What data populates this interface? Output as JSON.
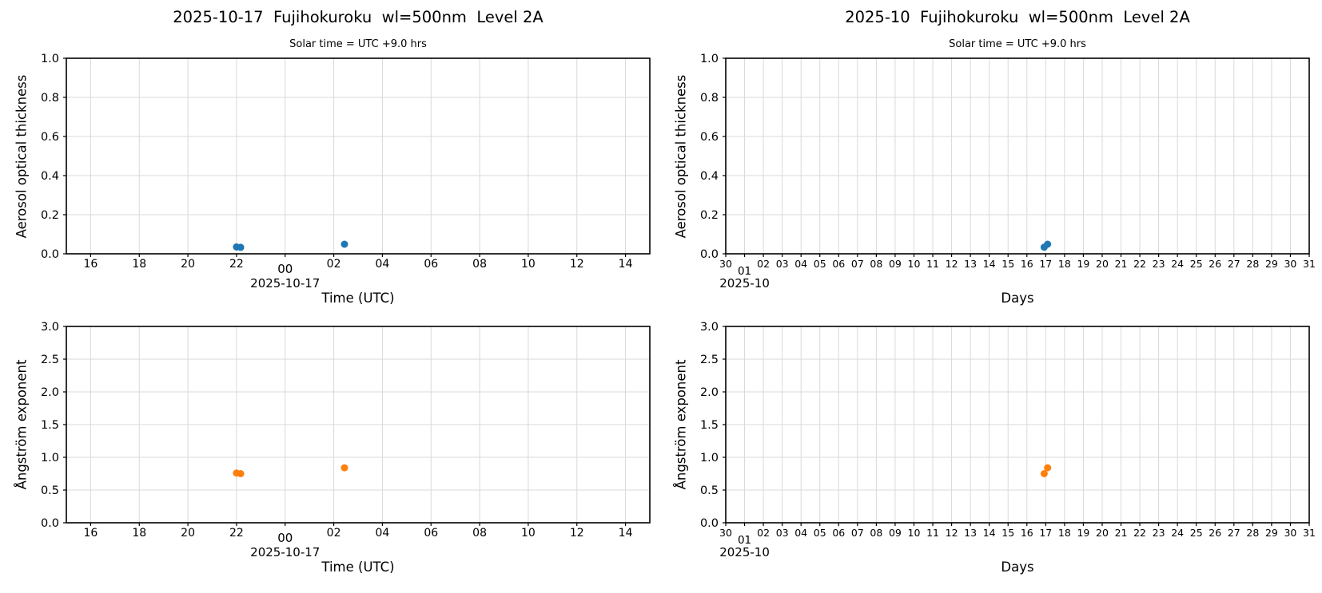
{
  "figure": {
    "background": "#ffffff",
    "layout": "2x2 scatter plots: daily (left) vs monthly (right); AOT (top) vs Angstrom exponent (bottom)"
  },
  "colors": {
    "marker_blue": "#1f77b4",
    "marker_orange": "#ff7f0e",
    "grid": "#d9d9d9",
    "spine": "#000000",
    "text": "#000000"
  },
  "chart_data": [
    {
      "id": "aot-daily",
      "type": "scatter",
      "title": "2025-10-17  Fujihokuroku  wl=500nm  Level 2A",
      "subtitle": "Solar time = UTC +9.0 hrs",
      "xlabel": "Time (UTC)",
      "ylabel": "Aerosol optical thickness",
      "grid": true,
      "legend": "none",
      "marker_color": "#1f77b4",
      "xlim": [
        15,
        39
      ],
      "ylim": [
        0,
        1
      ],
      "yticks": [
        {
          "pos": 0.0,
          "label": "0.0"
        },
        {
          "pos": 0.2,
          "label": "0.2"
        },
        {
          "pos": 0.4,
          "label": "0.4"
        },
        {
          "pos": 0.6,
          "label": "0.6"
        },
        {
          "pos": 0.8,
          "label": "0.8"
        },
        {
          "pos": 1.0,
          "label": "1.0"
        }
      ],
      "xticks": [
        {
          "pos": 16,
          "label": "16"
        },
        {
          "pos": 18,
          "label": "18"
        },
        {
          "pos": 20,
          "label": "20"
        },
        {
          "pos": 22,
          "label": "22"
        },
        {
          "pos": 24,
          "label": "00",
          "special": true
        },
        {
          "pos": 26,
          "label": "02"
        },
        {
          "pos": 28,
          "label": "04"
        },
        {
          "pos": 30,
          "label": "06"
        },
        {
          "pos": 32,
          "label": "08"
        },
        {
          "pos": 34,
          "label": "10"
        },
        {
          "pos": 36,
          "label": "12"
        },
        {
          "pos": 38,
          "label": "14"
        }
      ],
      "x_offset": {
        "label": "2025-10-17",
        "pos": 24
      },
      "points": [
        {
          "x": 22.0,
          "y": 0.035
        },
        {
          "x": 22.17,
          "y": 0.033
        },
        {
          "x": 26.44,
          "y": 0.049
        }
      ]
    },
    {
      "id": "aot-monthly",
      "type": "scatter",
      "title": "2025-10  Fujihokuroku  wl=500nm  Level 2A",
      "subtitle": "Solar time = UTC +9.0 hrs",
      "xlabel": "Days",
      "ylabel": "Aerosol optical thickness",
      "grid": true,
      "legend": "none",
      "marker_color": "#1f77b4",
      "xlim": [
        0,
        31
      ],
      "ylim": [
        0,
        1
      ],
      "yticks": [
        {
          "pos": 0.0,
          "label": "0.0"
        },
        {
          "pos": 0.2,
          "label": "0.2"
        },
        {
          "pos": 0.4,
          "label": "0.4"
        },
        {
          "pos": 0.6,
          "label": "0.6"
        },
        {
          "pos": 0.8,
          "label": "0.8"
        },
        {
          "pos": 1.0,
          "label": "1.0"
        }
      ],
      "xticks": [
        {
          "pos": 0,
          "label": "30"
        },
        {
          "pos": 1,
          "label": "01",
          "special": true
        },
        {
          "pos": 2,
          "label": "02"
        },
        {
          "pos": 3,
          "label": "03"
        },
        {
          "pos": 4,
          "label": "04"
        },
        {
          "pos": 5,
          "label": "05"
        },
        {
          "pos": 6,
          "label": "06"
        },
        {
          "pos": 7,
          "label": "07"
        },
        {
          "pos": 8,
          "label": "08"
        },
        {
          "pos": 9,
          "label": "09"
        },
        {
          "pos": 10,
          "label": "10"
        },
        {
          "pos": 11,
          "label": "11"
        },
        {
          "pos": 12,
          "label": "12"
        },
        {
          "pos": 13,
          "label": "13"
        },
        {
          "pos": 14,
          "label": "14"
        },
        {
          "pos": 15,
          "label": "15"
        },
        {
          "pos": 16,
          "label": "16"
        },
        {
          "pos": 17,
          "label": "17"
        },
        {
          "pos": 18,
          "label": "18"
        },
        {
          "pos": 19,
          "label": "19"
        },
        {
          "pos": 20,
          "label": "20"
        },
        {
          "pos": 21,
          "label": "21"
        },
        {
          "pos": 22,
          "label": "22"
        },
        {
          "pos": 23,
          "label": "23"
        },
        {
          "pos": 24,
          "label": "24"
        },
        {
          "pos": 25,
          "label": "25"
        },
        {
          "pos": 26,
          "label": "26"
        },
        {
          "pos": 27,
          "label": "27"
        },
        {
          "pos": 28,
          "label": "28"
        },
        {
          "pos": 29,
          "label": "29"
        },
        {
          "pos": 30,
          "label": "30"
        },
        {
          "pos": 31,
          "label": "31"
        }
      ],
      "x_offset": {
        "label": "2025-10",
        "pos": 1
      },
      "points": [
        {
          "x": 16.92,
          "y": 0.034
        },
        {
          "x": 17.1,
          "y": 0.049
        }
      ]
    },
    {
      "id": "angstrom-daily",
      "type": "scatter",
      "title": "",
      "subtitle": "",
      "xlabel": "Time (UTC)",
      "ylabel": "Ångström exponent",
      "grid": true,
      "legend": "none",
      "marker_color": "#ff7f0e",
      "xlim": [
        15,
        39
      ],
      "ylim": [
        0,
        3
      ],
      "yticks": [
        {
          "pos": 0.0,
          "label": "0.0"
        },
        {
          "pos": 0.5,
          "label": "0.5"
        },
        {
          "pos": 1.0,
          "label": "1.0"
        },
        {
          "pos": 1.5,
          "label": "1.5"
        },
        {
          "pos": 2.0,
          "label": "2.0"
        },
        {
          "pos": 2.5,
          "label": "2.5"
        },
        {
          "pos": 3.0,
          "label": "3.0"
        }
      ],
      "xticks": [
        {
          "pos": 16,
          "label": "16"
        },
        {
          "pos": 18,
          "label": "18"
        },
        {
          "pos": 20,
          "label": "20"
        },
        {
          "pos": 22,
          "label": "22"
        },
        {
          "pos": 24,
          "label": "00",
          "special": true
        },
        {
          "pos": 26,
          "label": "02"
        },
        {
          "pos": 28,
          "label": "04"
        },
        {
          "pos": 30,
          "label": "06"
        },
        {
          "pos": 32,
          "label": "08"
        },
        {
          "pos": 34,
          "label": "10"
        },
        {
          "pos": 36,
          "label": "12"
        },
        {
          "pos": 38,
          "label": "14"
        }
      ],
      "x_offset": {
        "label": "2025-10-17",
        "pos": 24
      },
      "points": [
        {
          "x": 22.0,
          "y": 0.76
        },
        {
          "x": 22.17,
          "y": 0.75
        },
        {
          "x": 26.44,
          "y": 0.84
        }
      ]
    },
    {
      "id": "angstrom-monthly",
      "type": "scatter",
      "title": "",
      "subtitle": "",
      "xlabel": "Days",
      "ylabel": "Ångström exponent",
      "grid": true,
      "legend": "none",
      "marker_color": "#ff7f0e",
      "xlim": [
        0,
        31
      ],
      "ylim": [
        0,
        3
      ],
      "yticks": [
        {
          "pos": 0.0,
          "label": "0.0"
        },
        {
          "pos": 0.5,
          "label": "0.5"
        },
        {
          "pos": 1.0,
          "label": "1.0"
        },
        {
          "pos": 1.5,
          "label": "1.5"
        },
        {
          "pos": 2.0,
          "label": "2.0"
        },
        {
          "pos": 2.5,
          "label": "2.5"
        },
        {
          "pos": 3.0,
          "label": "3.0"
        }
      ],
      "xticks": [
        {
          "pos": 0,
          "label": "30"
        },
        {
          "pos": 1,
          "label": "01",
          "special": true
        },
        {
          "pos": 2,
          "label": "02"
        },
        {
          "pos": 3,
          "label": "03"
        },
        {
          "pos": 4,
          "label": "04"
        },
        {
          "pos": 5,
          "label": "05"
        },
        {
          "pos": 6,
          "label": "06"
        },
        {
          "pos": 7,
          "label": "07"
        },
        {
          "pos": 8,
          "label": "08"
        },
        {
          "pos": 9,
          "label": "09"
        },
        {
          "pos": 10,
          "label": "10"
        },
        {
          "pos": 11,
          "label": "11"
        },
        {
          "pos": 12,
          "label": "12"
        },
        {
          "pos": 13,
          "label": "13"
        },
        {
          "pos": 14,
          "label": "14"
        },
        {
          "pos": 15,
          "label": "15"
        },
        {
          "pos": 16,
          "label": "16"
        },
        {
          "pos": 17,
          "label": "17"
        },
        {
          "pos": 18,
          "label": "18"
        },
        {
          "pos": 19,
          "label": "19"
        },
        {
          "pos": 20,
          "label": "20"
        },
        {
          "pos": 21,
          "label": "21"
        },
        {
          "pos": 22,
          "label": "22"
        },
        {
          "pos": 23,
          "label": "23"
        },
        {
          "pos": 24,
          "label": "24"
        },
        {
          "pos": 25,
          "label": "25"
        },
        {
          "pos": 26,
          "label": "26"
        },
        {
          "pos": 27,
          "label": "27"
        },
        {
          "pos": 28,
          "label": "28"
        },
        {
          "pos": 29,
          "label": "29"
        },
        {
          "pos": 30,
          "label": "30"
        },
        {
          "pos": 31,
          "label": "31"
        }
      ],
      "x_offset": {
        "label": "2025-10",
        "pos": 1
      },
      "points": [
        {
          "x": 16.92,
          "y": 0.75
        },
        {
          "x": 17.1,
          "y": 0.84
        }
      ]
    }
  ]
}
